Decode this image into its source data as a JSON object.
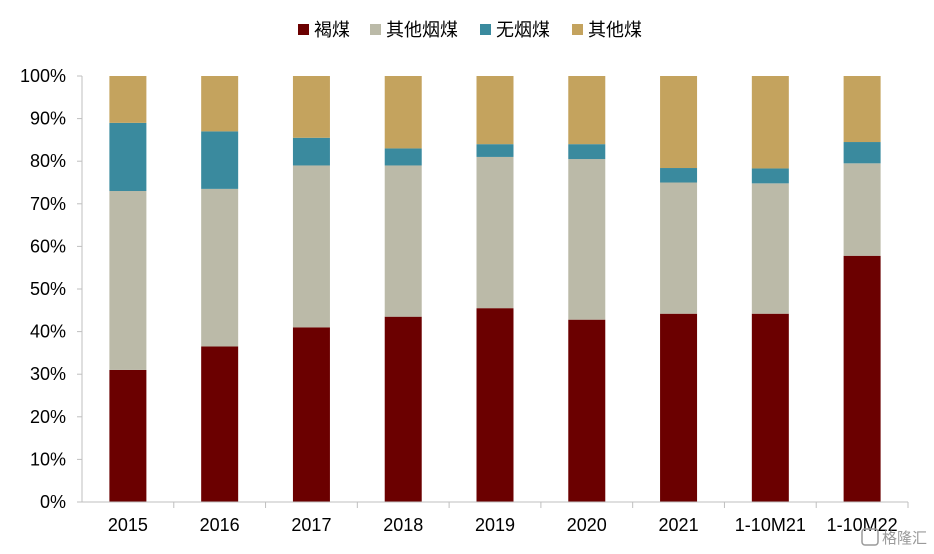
{
  "chart_data": {
    "type": "bar",
    "stacked": true,
    "categories": [
      "2015",
      "2016",
      "2017",
      "2018",
      "2019",
      "2020",
      "2021",
      "1-10M21",
      "1-10M22"
    ],
    "series": [
      {
        "name": "褐煤",
        "color": "#6b0000",
        "values": [
          31,
          36.5,
          41,
          43.5,
          45.5,
          42.8,
          44.2,
          44.2,
          57.8
        ]
      },
      {
        "name": "其他烟煤",
        "color": "#bbbaa8",
        "values": [
          42,
          37,
          38,
          35.5,
          35.5,
          37.7,
          30.8,
          30.6,
          21.7
        ]
      },
      {
        "name": "无烟煤",
        "color": "#3a8a9e",
        "values": [
          16,
          13.5,
          6.5,
          4,
          3,
          3.5,
          3.4,
          3.5,
          5
        ]
      },
      {
        "name": "其他煤",
        "color": "#c4a35e",
        "values": [
          11,
          13,
          14.5,
          17,
          16,
          16,
          21.6,
          21.7,
          15.5
        ]
      }
    ],
    "ylim": [
      0,
      100
    ],
    "yticks": [
      "0%",
      "10%",
      "20%",
      "30%",
      "40%",
      "50%",
      "60%",
      "70%",
      "80%",
      "90%",
      "100%"
    ],
    "legend_position": "top",
    "grid": false
  },
  "watermark": {
    "text": "格隆汇"
  }
}
